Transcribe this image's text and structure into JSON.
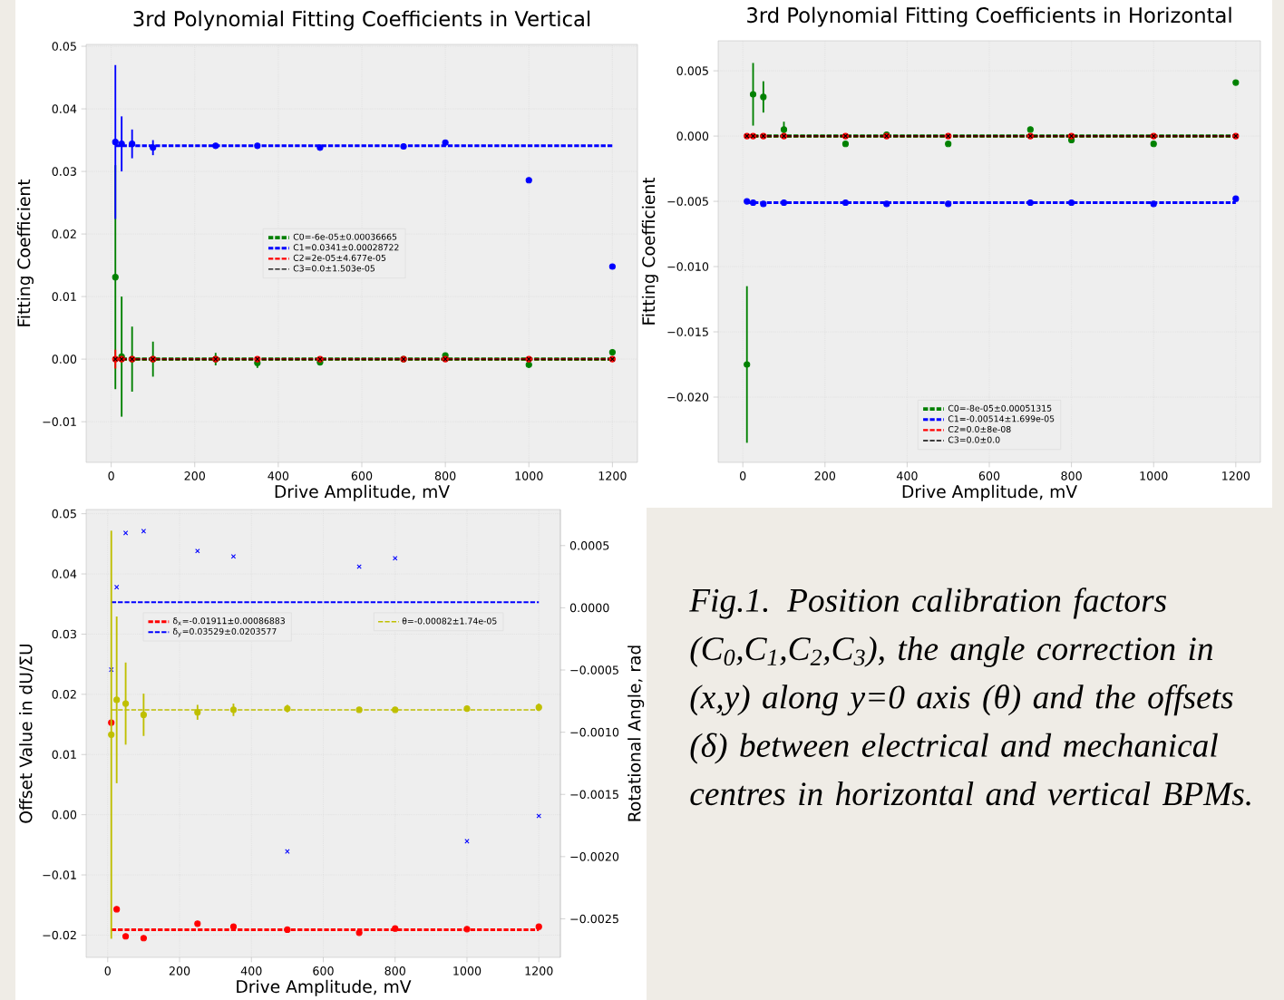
{
  "chart_data": [
    {
      "type": "scatter",
      "title": "3rd Polynomial Fitting Coefficients in Vertical",
      "xlabel": "Drive Amplitude, mV",
      "ylabel": "Fitting Coefficient",
      "x": [
        10,
        25,
        50,
        100,
        250,
        350,
        500,
        700,
        800,
        1000,
        1200
      ],
      "xlim": [
        -60,
        1260
      ],
      "xticks": [
        0,
        200,
        400,
        600,
        800,
        1000,
        1200
      ],
      "ylim": [
        -0.0165,
        0.0503
      ],
      "yticks": [
        {
          "value": -0.01,
          "label": "−0.01"
        },
        {
          "value": 0,
          "label": "0.00"
        },
        0.01,
        0.02,
        0.03,
        0.04,
        0.05
      ],
      "grid": true,
      "legend": "center",
      "series": [
        {
          "type": "line",
          "name": "C0=-6e-05±0.00036665",
          "color": "#008000",
          "values": [
            0,
            0,
            0,
            0,
            0,
            0,
            0,
            0,
            0,
            0,
            0
          ],
          "line_style": "dashed"
        },
        {
          "type": "line",
          "name": "C1=0.0341±0.00028722",
          "color": "#0000ff",
          "values": [
            0.0341,
            0.0341,
            0.0341,
            0.0341,
            0.0341,
            0.0341,
            0.0341,
            0.0341,
            0.0341,
            0.0341,
            0.0341
          ],
          "line_style": "dashed"
        },
        {
          "type": "line",
          "name": "C2=2e-05±4.677e-05",
          "color": "#ff0000",
          "values": [
            0,
            0,
            0,
            0,
            0,
            0,
            0,
            0,
            0,
            0,
            0
          ],
          "line_style": "dashed"
        },
        {
          "type": "line",
          "name": "C3=0.0±1.503e-05",
          "color": "#000000",
          "values": [
            0,
            0,
            0,
            0,
            0,
            0,
            0,
            0,
            0,
            0,
            0
          ],
          "line_style": "dashed"
        },
        {
          "color": "#008000",
          "marker": "circle",
          "values": [
            0.0131,
            0.0004,
            0,
            0,
            0,
            -0.0006,
            -0.0005,
            0,
            0.0006,
            -0.0009,
            0.0011
          ],
          "errors": [
            0.0179,
            0.0096,
            0.0052,
            0.0028,
            0.001,
            0.0008,
            null,
            null,
            null,
            null,
            null
          ]
        },
        {
          "color": "#0000ff",
          "marker": "circle",
          "values": [
            0.0347,
            0.0344,
            0.0344,
            0.0338,
            0.0341,
            0.0341,
            0.0338,
            0.034,
            0.0346,
            0.0286,
            0.0148
          ],
          "errors": [
            0.0123,
            0.0044,
            0.0023,
            0.0012,
            null,
            null,
            null,
            null,
            null,
            null,
            null
          ]
        },
        {
          "color": "#ff0000",
          "marker": "circle",
          "values": [
            0,
            0,
            0,
            0,
            0,
            0,
            0,
            0,
            0,
            0,
            0
          ],
          "errors": [
            0.0015,
            null,
            null,
            null,
            null,
            null,
            null,
            null,
            null,
            null,
            null
          ]
        },
        {
          "color": "#000000",
          "marker": "cross",
          "values": [
            0,
            0,
            0,
            0,
            0,
            0,
            0,
            0,
            0,
            0,
            0
          ]
        }
      ]
    },
    {
      "type": "scatter",
      "title": "3rd Polynomial Fitting Coefficients in Horizontal",
      "xlabel": "Drive Amplitude, mV",
      "ylabel": "Fitting Coefficient",
      "x": [
        10,
        25,
        50,
        100,
        250,
        350,
        500,
        700,
        800,
        1000,
        1200
      ],
      "xlim": [
        -60,
        1260
      ],
      "xticks": [
        0,
        200,
        400,
        600,
        800,
        1000,
        1200
      ],
      "ylim": [
        -0.025,
        0.0073
      ],
      "yticks": [
        {
          "value": -0.02,
          "label": "−0.020"
        },
        {
          "value": -0.015,
          "label": "−0.015"
        },
        {
          "value": -0.01,
          "label": "−0.010"
        },
        {
          "value": -0.005,
          "label": "−0.005"
        },
        {
          "value": 0,
          "label": "0.000"
        },
        0.005
      ],
      "grid": true,
      "legend": "bottom",
      "series": [
        {
          "type": "line",
          "name": "C0=-8e-05±0.00051315",
          "color": "#008000",
          "values": [
            0,
            0,
            0,
            0,
            0,
            0,
            0,
            0,
            0,
            0,
            0
          ],
          "line_style": "dashed"
        },
        {
          "type": "line",
          "name": "C1=-0.00514±1.699e-05",
          "color": "#0000ff",
          "values": [
            -0.0051,
            -0.0051,
            -0.0051,
            -0.0051,
            -0.0051,
            -0.0051,
            -0.0051,
            -0.0051,
            -0.0051,
            -0.0051,
            -0.0051
          ],
          "line_style": "dashed"
        },
        {
          "type": "line",
          "name": "C2=0.0±8e-08",
          "color": "#ff0000",
          "values": [
            0,
            0,
            0,
            0,
            0,
            0,
            0,
            0,
            0,
            0,
            0
          ],
          "line_style": "dashed"
        },
        {
          "type": "line",
          "name": "C3=0.0±0.0",
          "color": "#000000",
          "values": [
            0,
            0,
            0,
            0,
            0,
            0,
            0,
            0,
            0,
            0,
            0
          ],
          "line_style": "dashed"
        },
        {
          "color": "#008000",
          "marker": "circle",
          "values": [
            -0.0175,
            0.0032,
            0.003,
            0.0005,
            -0.0006,
            0.0001,
            -0.0006,
            0.0005,
            -0.0003,
            -0.0006,
            0.0041
          ],
          "errors": [
            0.006,
            0.0024,
            0.0012,
            0.0006,
            null,
            null,
            null,
            null,
            null,
            null,
            null
          ]
        },
        {
          "color": "#0000ff",
          "marker": "circle",
          "values": [
            -0.005,
            -0.0051,
            -0.0052,
            -0.0051,
            -0.0051,
            -0.0052,
            -0.0052,
            -0.0051,
            -0.0051,
            -0.0052,
            -0.0048
          ]
        },
        {
          "color": "#ff0000",
          "marker": "circle",
          "values": [
            0,
            0,
            0,
            0,
            0,
            0,
            0,
            0,
            0,
            0,
            0
          ]
        },
        {
          "color": "#000000",
          "marker": "cross",
          "values": [
            0,
            0,
            0,
            0,
            0,
            0,
            0,
            0,
            0,
            0,
            0
          ]
        }
      ]
    },
    {
      "type": "scatter",
      "xlabel": "Drive Amplitude, mV",
      "ylabel": "Offset Value in dU/ΣU",
      "y2label": "Rotational Angle, rad",
      "x": [
        10,
        25,
        50,
        100,
        250,
        350,
        500,
        700,
        800,
        1000,
        1200
      ],
      "xlim": [
        -60,
        1260
      ],
      "xticks": [
        0,
        200,
        400,
        600,
        800,
        1000,
        1200
      ],
      "ylim": [
        -0.0237,
        0.0507
      ],
      "yticks": [
        {
          "value": -0.02,
          "label": "−0.02"
        },
        {
          "value": -0.01,
          "label": "−0.01"
        },
        {
          "value": 0,
          "label": "0.00"
        },
        0.01,
        0.02,
        0.03,
        0.04,
        0.05
      ],
      "y2lim": [
        -0.00281,
        0.00079
      ],
      "y2ticks": [
        {
          "value": -0.0025,
          "label": "−0.0025"
        },
        {
          "value": -0.002,
          "label": "−0.0020"
        },
        {
          "value": -0.0015,
          "label": "−0.0015"
        },
        {
          "value": -0.001,
          "label": "−0.0010"
        },
        {
          "value": -0.0005,
          "label": "−0.0005"
        },
        {
          "value": 0,
          "label": "0.0000"
        },
        0.0005
      ],
      "grid": true,
      "legend": "top",
      "annotations": [
        "Fig.1. Position calibration factors (C$_{0}$,C$_{1}$,C$_{2}$,C$_{3}$), the angle correction in (x,y) along y=0 axis (θ) and the offsets (δ) between electrical and mechanical centres in horizontal and vertical BPMs."
      ],
      "series": [
        {
          "type": "line",
          "name": "δ$_{x}$=-0.01911±0.00086883",
          "color": "#ff0000",
          "values": [
            -0.0191,
            -0.0191,
            -0.0191,
            -0.0191,
            -0.0191,
            -0.0191,
            -0.0191,
            -0.0191,
            -0.0191,
            -0.0191,
            -0.0191
          ],
          "line_style": "dashed"
        },
        {
          "type": "line",
          "name": "δ$_{y}$=0.03529±0.0203577",
          "color": "#0000ff",
          "values": [
            0.0353,
            0.0353,
            0.0353,
            0.0353,
            0.0353,
            0.0353,
            0.0353,
            0.0353,
            0.0353,
            0.0353,
            0.0353
          ],
          "line_style": "dashed"
        },
        {
          "type": "line",
          "name": "θ=-0.00082±1.74e-05",
          "color": "#bfbf00",
          "axis": "y2",
          "values": [
            -0.00082,
            -0.00082,
            -0.00082,
            -0.00082,
            -0.00082,
            -0.00082,
            -0.00082,
            -0.00082,
            -0.00082,
            -0.00082,
            -0.00082
          ],
          "line_style": "dashed"
        },
        {
          "color": "#ff0000",
          "marker": "circle",
          "values": [
            0.0153,
            -0.0157,
            -0.0202,
            -0.0205,
            -0.0181,
            -0.0186,
            -0.0191,
            -0.0196,
            -0.0189,
            -0.019,
            -0.0186
          ]
        },
        {
          "color": "#0000ff",
          "marker": "cross",
          "values": [
            0.0241,
            0.0378,
            0.0468,
            0.0471,
            0.0438,
            0.0429,
            -0.0061,
            0.0412,
            0.0426,
            -0.0044,
            -0.0002
          ]
        },
        {
          "color": "#bfbf00",
          "marker": "circle",
          "axis": "y2",
          "values": [
            -0.00102,
            -0.00074,
            -0.00077,
            -0.00086,
            -0.00084,
            -0.00082,
            -0.00081,
            -0.00082,
            -0.00082,
            -0.00081,
            -0.0008
          ],
          "errors": [
            0.00164,
            0.00067,
            0.00033,
            0.00017,
            6e-05,
            5e-05,
            3e-05,
            2e-05,
            2e-05,
            2e-05,
            3e-05
          ]
        }
      ]
    }
  ]
}
